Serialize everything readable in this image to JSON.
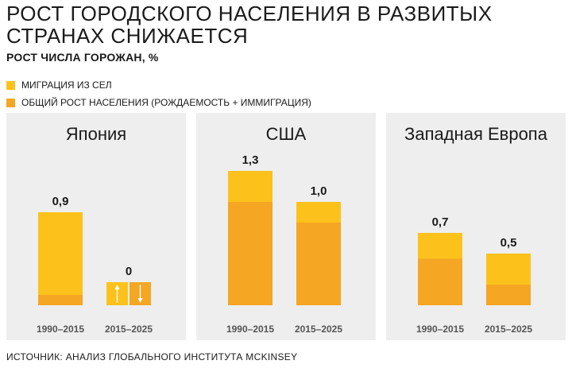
{
  "title": "РОСТ ГОРОДСКОГО НАСЕЛЕНИЯ В РАЗВИТЫХ СТРАНАХ СНИЖАЕТСЯ",
  "subtitle": "РОСТ ЧИСЛА ГОРОЖАН, %",
  "legend": [
    {
      "label": "МИГРАЦИЯ ИЗ СЕЛ",
      "color": "#fcc21b"
    },
    {
      "label": "ОБЩИЙ РОСТ НАСЕЛЕНИЯ (РОЖДАЕМОСТЬ + ИММИГРАЦИЯ)",
      "color": "#f5a623"
    }
  ],
  "source": "ИСТОЧНИК: АНАЛИЗ ГЛОБАЛЬНОГО ИНСТИТУТА MCKINSEY",
  "colors": {
    "migration": "#fcc21b",
    "natural": "#f5a623",
    "panel_bg": "#eeeeee"
  },
  "chart_data": [
    {
      "type": "bar",
      "stacked": true,
      "title": "Япония",
      "categories": [
        "1990–2015",
        "2015–2025"
      ],
      "totals": [
        0.9,
        0
      ],
      "total_labels": [
        "0,9",
        "0"
      ],
      "series": [
        {
          "name": "ОБЩИЙ РОСТ НАСЕЛЕНИЯ (РОЖДАЕМОСТЬ + ИММИГРАЦИЯ)",
          "values": [
            0.1,
            0
          ]
        },
        {
          "name": "МИГРАЦИЯ ИЗ СЕЛ",
          "values": [
            0.8,
            0
          ]
        }
      ],
      "annotation": "2015–2025: zero net — migration up arrow and population down arrow offset each other",
      "ylim": [
        0,
        1.4
      ]
    },
    {
      "type": "bar",
      "stacked": true,
      "title": "США",
      "categories": [
        "1990–2015",
        "2015–2025"
      ],
      "totals": [
        1.3,
        1.0
      ],
      "total_labels": [
        "1,3",
        "1,0"
      ],
      "series": [
        {
          "name": "ОБЩИЙ РОСТ НАСЕЛЕНИЯ (РОЖДАЕМОСТЬ + ИММИГРАЦИЯ)",
          "values": [
            1.0,
            0.8
          ]
        },
        {
          "name": "МИГРАЦИЯ ИЗ СЕЛ",
          "values": [
            0.3,
            0.2
          ]
        }
      ],
      "ylim": [
        0,
        1.4
      ]
    },
    {
      "type": "bar",
      "stacked": true,
      "title": "Западная Европа",
      "categories": [
        "1990–2015",
        "2015–2025"
      ],
      "totals": [
        0.7,
        0.5
      ],
      "total_labels": [
        "0,7",
        "0,5"
      ],
      "series": [
        {
          "name": "ОБЩИЙ РОСТ НАСЕЛЕНИЯ (РОЖДАЕМОСТЬ + ИММИГРАЦИЯ)",
          "values": [
            0.45,
            0.2
          ]
        },
        {
          "name": "МИГРАЦИЯ ИЗ СЕЛ",
          "values": [
            0.25,
            0.3
          ]
        }
      ],
      "ylim": [
        0,
        1.4
      ]
    }
  ]
}
